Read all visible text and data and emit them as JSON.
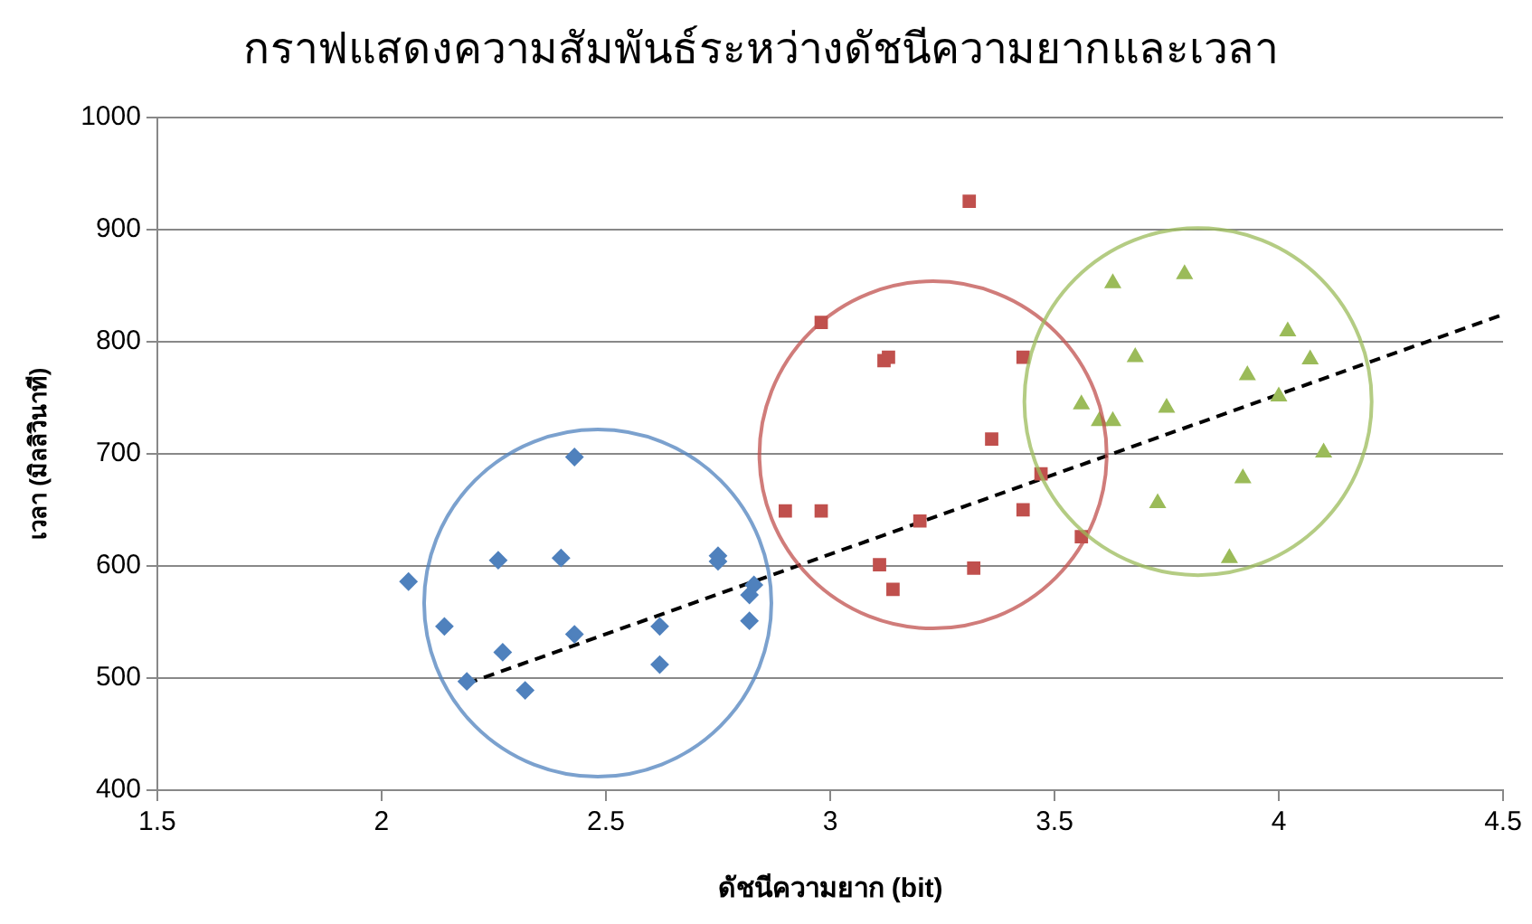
{
  "chart_data": {
    "type": "scatter",
    "title": "กราฟแสดงความสัมพันธ์ระหว่างดัชนีความยากและเวลา",
    "xlabel": "ดัชนีความยาก (bit)",
    "ylabel": "เวลา (มิลลิวินาที)",
    "xlim": [
      1.5,
      4.5
    ],
    "xticks": [
      1.5,
      2,
      2.5,
      3,
      3.5,
      4,
      4.5
    ],
    "ylim": [
      400,
      1000
    ],
    "yticks": [
      400,
      500,
      600,
      700,
      800,
      900,
      1000
    ],
    "grid": "y",
    "legend": false,
    "series": [
      {
        "color": "#4f81bd",
        "marker": "diamond",
        "x": [
          2.06,
          2.14,
          2.19,
          2.26,
          2.27,
          2.32,
          2.4,
          2.43,
          2.43,
          2.62,
          2.62,
          2.75,
          2.75,
          2.82,
          2.82,
          2.83
        ],
        "values": [
          586,
          546,
          497,
          605,
          523,
          489,
          607,
          697,
          539,
          546,
          512,
          609,
          604,
          574,
          551,
          583
        ]
      },
      {
        "color": "#c0504d",
        "marker": "square",
        "x": [
          3.31,
          2.98,
          3.12,
          3.13,
          3.43,
          3.36,
          3.47,
          2.9,
          2.98,
          3.2,
          3.43,
          3.56,
          3.11,
          3.32,
          3.14
        ],
        "values": [
          925,
          817,
          783,
          786,
          786,
          713,
          682,
          649,
          649,
          640,
          650,
          626,
          601,
          598,
          579
        ]
      },
      {
        "color": "#9bbb59",
        "marker": "triangle",
        "x": [
          3.63,
          3.79,
          4.02,
          4.07,
          3.68,
          3.93,
          4.0,
          3.56,
          3.75,
          3.6,
          3.63,
          4.1,
          3.92,
          3.73,
          3.89
        ],
        "values": [
          852,
          860,
          809,
          784,
          786,
          770,
          751,
          744,
          741,
          729,
          729,
          701,
          678,
          656,
          607
        ]
      },
      {
        "type": "line",
        "color": "#000000",
        "line_style": "dashed",
        "marker": "none",
        "x": [
          2.19,
          4.5
        ],
        "values": [
          495,
          824
        ]
      }
    ]
  }
}
